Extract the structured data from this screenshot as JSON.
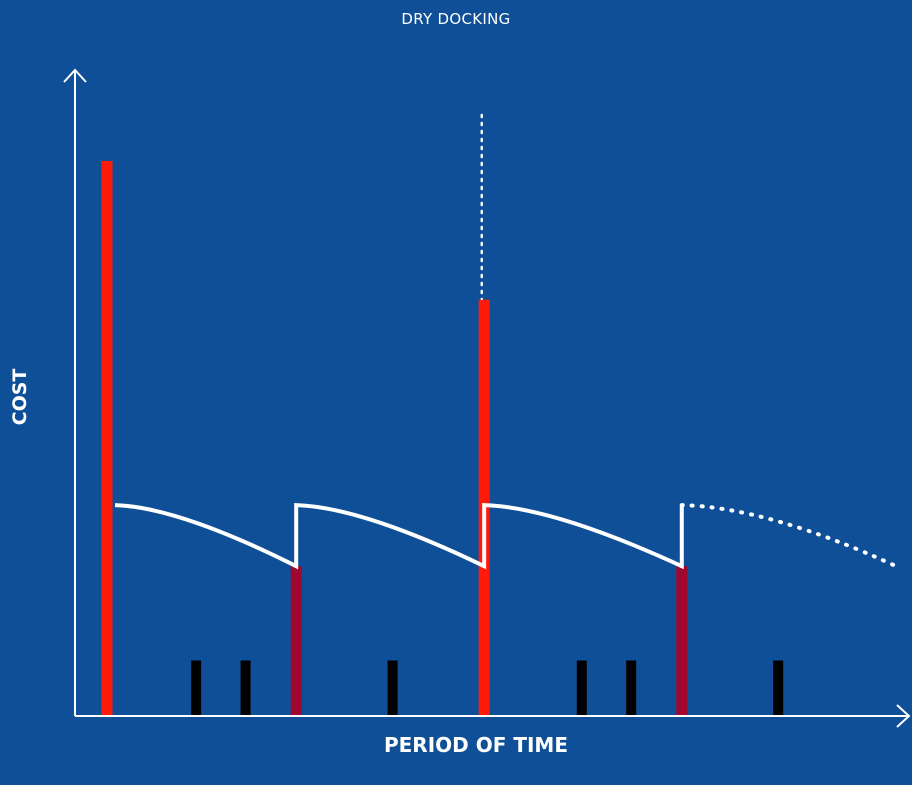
{
  "diagram": {
    "top_label": "DRY DOCKING",
    "x_axis_label": "PERIOD OF TIME",
    "y_axis_label": "COST"
  },
  "colors": {
    "background": "#0f4f97",
    "axis": "#ffffff",
    "dry_docking_bar": "#ff1a0a",
    "special_cost_bar": "#a0072f",
    "routine_cost_bar": "#000000",
    "cost_curve": "#ffffff"
  },
  "elements": {
    "bars": [
      {
        "kind": "dry_docking",
        "t": 0.0,
        "value": 1.0
      },
      {
        "kind": "routine",
        "t": 0.74,
        "value": 0.1
      },
      {
        "kind": "routine",
        "t": 1.15,
        "value": 0.1
      },
      {
        "kind": "special",
        "t": 1.57,
        "value": 0.27
      },
      {
        "kind": "routine",
        "t": 2.37,
        "value": 0.1
      },
      {
        "kind": "dry_docking",
        "t": 3.13,
        "value": 0.75
      },
      {
        "kind": "routine",
        "t": 3.94,
        "value": 0.1
      },
      {
        "kind": "routine",
        "t": 4.35,
        "value": 0.1
      },
      {
        "kind": "special",
        "t": 4.77,
        "value": 0.27
      },
      {
        "kind": "routine",
        "t": 5.57,
        "value": 0.1
      }
    ],
    "cost_curve": {
      "segments": [
        {
          "from": {
            "t": 0.0,
            "v": 0.38
          },
          "to": {
            "t": 1.57,
            "v": 0.27
          }
        },
        {
          "from": {
            "t": 1.57,
            "v": 0.38
          },
          "to": {
            "t": 3.13,
            "v": 0.27
          }
        },
        {
          "from": {
            "t": 3.13,
            "v": 0.38
          },
          "to": {
            "t": 4.77,
            "v": 0.27
          }
        }
      ],
      "projection": {
        "from": {
          "t": 4.77,
          "v": 0.38
        },
        "to": {
          "t": 6.5,
          "v": 0.27
        }
      }
    },
    "marker_line_t": 3.11
  }
}
